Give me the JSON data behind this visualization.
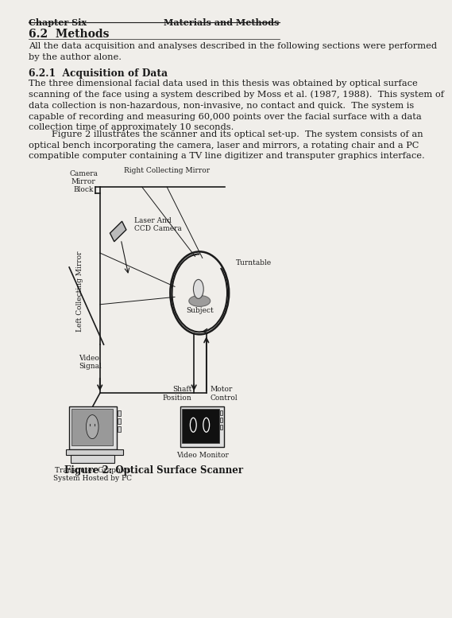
{
  "bg_color": "#f0eeea",
  "header_left": "Chapter Six",
  "header_right": "Materials and Methods",
  "section_title": "6.2  Methods",
  "para1": "All the data acquisition and analyses described in the following sections were performed\nby the author alone.",
  "subsection_title": "6.2.1  Acquisition of Data",
  "para2": "The three dimensional facial data used in this thesis was obtained by optical surface\nscanning of the face using a system described by Moss et al. (1987, 1988).  This system of\ndata collection is non-hazardous, non-invasive, no contact and quick.  The system is\ncapable of recording and measuring 60,000 points over the facial surface with a data\ncollection time of approximately 10 seconds.",
  "para3": "        Figure 2 illustrates the scanner and its optical set-up.  The system consists of an\noptical bench incorporating the camera, laser and mirrors, a rotating chair and a PC\ncompatible computer containing a TV line digitizer and transputer graphics interface.",
  "fig_caption": "Figure 2: Optical Surface Scanner",
  "labels": {
    "camera_mirror_block": "Camera\nMirror\nBlock",
    "right_collecting_mirror": "Right Collecting Mirror",
    "laser_ccd": "Laser And\nCCD Camera",
    "left_collecting_mirror": "Left Collecting Mirror",
    "turntable": "Turntable",
    "subject": "Subject",
    "video_signal": "Video\nSignal",
    "shaft_position": "Shaft\nPosition",
    "motor_control": "Motor\nControl",
    "transputer": "Transputer Graphics\nSystem Hosted by PC",
    "video_monitor": "Video Monitor"
  },
  "text_color": "#1a1a1a",
  "line_color": "#1a1a1a"
}
